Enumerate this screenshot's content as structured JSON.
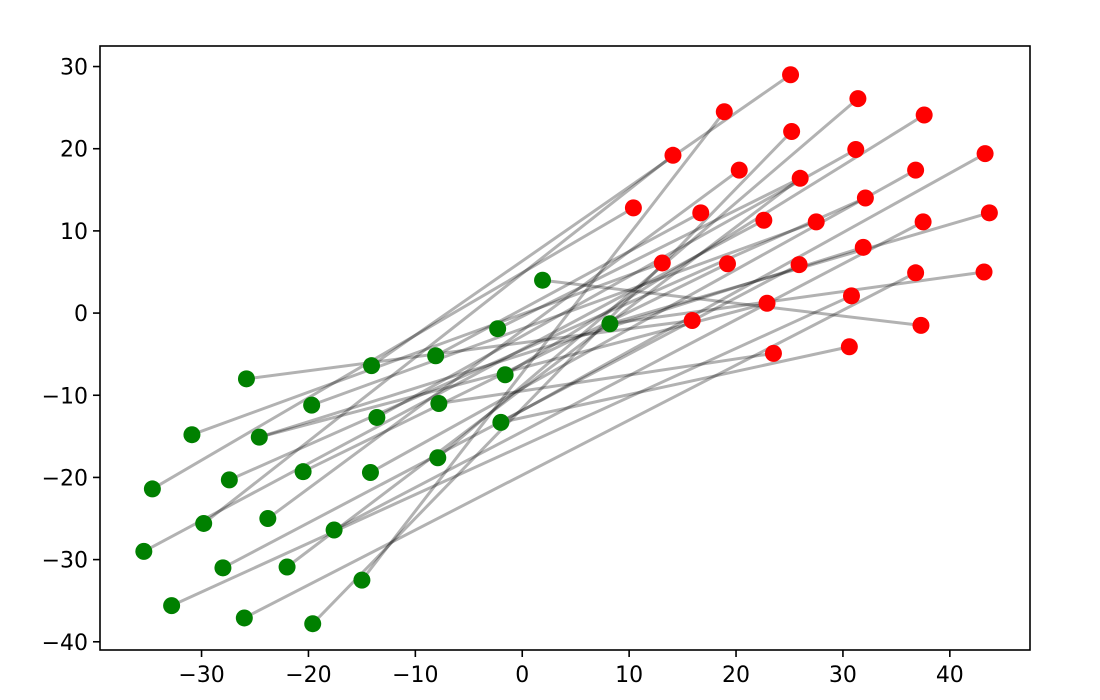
{
  "chart_data": {
    "type": "scatter",
    "title": "",
    "xlabel": "",
    "ylabel": "",
    "xlim": [
      -39.5,
      47.5
    ],
    "ylim": [
      -41,
      32.5
    ],
    "xticks": [
      -30,
      -20,
      -10,
      0,
      10,
      20,
      30,
      40
    ],
    "yticks": [
      -40,
      -30,
      -20,
      -10,
      0,
      10,
      20,
      30
    ],
    "xtick_labels": [
      "−30",
      "−20",
      "−10",
      "0",
      "10",
      "20",
      "30",
      "40"
    ],
    "ytick_labels": [
      "−40",
      "−30",
      "−20",
      "−10",
      "0",
      "10",
      "20",
      "30"
    ],
    "grid": false,
    "legend": "none",
    "series": [
      {
        "color": "#008000",
        "points": [
          [
            -25.8,
            -8.0
          ],
          [
            -19.7,
            -11.2
          ],
          [
            -14.1,
            -6.4
          ],
          [
            -8.1,
            -5.2
          ],
          [
            -2.3,
            -1.9
          ],
          [
            1.9,
            4.0
          ],
          [
            8.2,
            -1.3
          ],
          [
            -30.9,
            -14.8
          ],
          [
            -24.6,
            -15.1
          ],
          [
            -13.6,
            -12.7
          ],
          [
            -7.8,
            -11.0
          ],
          [
            -1.6,
            -7.5
          ],
          [
            -34.6,
            -21.4
          ],
          [
            -27.4,
            -20.3
          ],
          [
            -20.5,
            -19.3
          ],
          [
            -14.2,
            -19.4
          ],
          [
            -7.9,
            -17.6
          ],
          [
            -2.0,
            -13.3
          ],
          [
            -35.4,
            -29.0
          ],
          [
            -29.8,
            -25.6
          ],
          [
            -23.8,
            -25.0
          ],
          [
            -17.6,
            -26.4
          ],
          [
            -28.0,
            -31.0
          ],
          [
            -22.0,
            -30.9
          ],
          [
            -15.0,
            -32.5
          ],
          [
            -32.8,
            -35.6
          ],
          [
            -26.0,
            -37.1
          ],
          [
            -19.6,
            -37.8
          ]
        ]
      },
      {
        "color": "#ff0000",
        "points": [
          [
            25.1,
            29.0
          ],
          [
            18.9,
            24.5
          ],
          [
            31.4,
            26.1
          ],
          [
            37.6,
            24.1
          ],
          [
            14.1,
            19.2
          ],
          [
            25.2,
            22.1
          ],
          [
            31.2,
            19.9
          ],
          [
            43.3,
            19.4
          ],
          [
            20.3,
            17.4
          ],
          [
            26.0,
            16.4
          ],
          [
            36.8,
            17.4
          ],
          [
            10.4,
            12.8
          ],
          [
            16.7,
            12.2
          ],
          [
            22.6,
            11.3
          ],
          [
            27.5,
            11.1
          ],
          [
            32.1,
            14.0
          ],
          [
            37.5,
            11.1
          ],
          [
            43.7,
            12.2
          ],
          [
            13.1,
            6.1
          ],
          [
            19.2,
            6.0
          ],
          [
            25.9,
            5.9
          ],
          [
            31.9,
            8.0
          ],
          [
            36.8,
            4.9
          ],
          [
            43.2,
            5.0
          ],
          [
            15.9,
            -0.9
          ],
          [
            22.9,
            1.2
          ],
          [
            30.8,
            2.1
          ],
          [
            37.3,
            -1.5
          ],
          [
            23.5,
            -4.9
          ],
          [
            30.6,
            -4.1
          ]
        ]
      }
    ],
    "connections": [
      [
        [
          -25.8,
          -8.0
        ],
        [
          15.9,
          -0.9
        ]
      ],
      [
        [
          -30.9,
          -14.8
        ],
        [
          13.1,
          6.1
        ]
      ],
      [
        [
          -34.6,
          -21.4
        ],
        [
          10.4,
          12.8
        ]
      ],
      [
        [
          -35.4,
          -29.0
        ],
        [
          22.6,
          11.3
        ]
      ],
      [
        [
          -32.8,
          -35.6
        ],
        [
          30.8,
          2.1
        ]
      ],
      [
        [
          -29.8,
          -25.6
        ],
        [
          14.1,
          19.2
        ]
      ],
      [
        [
          -28.0,
          -31.0
        ],
        [
          25.9,
          5.9
        ]
      ],
      [
        [
          -27.4,
          -20.3
        ],
        [
          32.1,
          14.0
        ]
      ],
      [
        [
          -26.0,
          -37.1
        ],
        [
          36.8,
          4.9
        ]
      ],
      [
        [
          -24.6,
          -15.1
        ],
        [
          22.9,
          1.2
        ]
      ],
      [
        [
          -24.6,
          -15.1
        ],
        [
          31.9,
          8.0
        ]
      ],
      [
        [
          -23.8,
          -25.0
        ],
        [
          20.3,
          17.4
        ]
      ],
      [
        [
          -22.0,
          -30.9
        ],
        [
          26.0,
          16.4
        ]
      ],
      [
        [
          -20.5,
          -19.3
        ],
        [
          19.2,
          6.0
        ]
      ],
      [
        [
          -19.7,
          -11.2
        ],
        [
          27.5,
          11.1
        ]
      ],
      [
        [
          -19.6,
          -37.8
        ],
        [
          25.2,
          22.1
        ]
      ],
      [
        [
          -17.6,
          -26.4
        ],
        [
          37.5,
          11.1
        ]
      ],
      [
        [
          -15.0,
          -32.5
        ],
        [
          18.9,
          24.5
        ]
      ],
      [
        [
          -14.2,
          -19.4
        ],
        [
          36.8,
          17.4
        ]
      ],
      [
        [
          -14.1,
          -6.4
        ],
        [
          25.1,
          29.0
        ]
      ],
      [
        [
          -13.6,
          -12.7
        ],
        [
          31.2,
          19.9
        ]
      ],
      [
        [
          -8.1,
          -5.2
        ],
        [
          16.7,
          12.2
        ]
      ],
      [
        [
          -7.9,
          -17.6
        ],
        [
          31.4,
          26.1
        ]
      ],
      [
        [
          -7.8,
          -11.0
        ],
        [
          23.5,
          -4.9
        ]
      ],
      [
        [
          -2.3,
          -1.9
        ],
        [
          26.0,
          16.4
        ]
      ],
      [
        [
          -2.0,
          -13.3
        ],
        [
          30.6,
          -4.1
        ]
      ],
      [
        [
          -2.0,
          -13.3
        ],
        [
          43.3,
          19.4
        ]
      ],
      [
        [
          -1.6,
          -7.5
        ],
        [
          37.6,
          24.1
        ]
      ],
      [
        [
          1.9,
          4.0
        ],
        [
          37.3,
          -1.5
        ]
      ],
      [
        [
          8.2,
          -1.3
        ],
        [
          43.7,
          12.2
        ]
      ],
      [
        [
          8.2,
          -1.3
        ],
        [
          43.2,
          5.0
        ]
      ]
    ]
  }
}
